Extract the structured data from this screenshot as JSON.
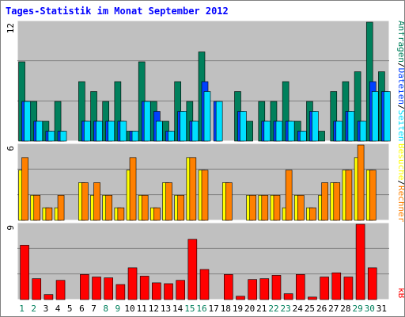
{
  "title": "Tages-Statistik im Monat September 2012",
  "colors": {
    "title": "#0000ff",
    "panel_bg": "#c0c0c0",
    "grid": "#808080",
    "anfragen": "#00805c",
    "dateien": "#0040ff",
    "seiten": "#00e0ff",
    "besuche": "#ffff00",
    "rechner": "#ff8000",
    "kb": "#ff0000",
    "weekend_label": "#00805c",
    "weekday_label": "#000000"
  },
  "chart_data": [
    {
      "type": "bar",
      "panel": "top",
      "ymax_label": "12",
      "ymax": 12,
      "x": [
        1,
        2,
        3,
        4,
        5,
        6,
        7,
        8,
        9,
        10,
        11,
        12,
        13,
        14,
        15,
        16,
        17,
        18,
        19,
        20,
        21,
        22,
        23,
        24,
        25,
        26,
        27,
        28,
        29,
        30,
        31
      ],
      "series": [
        {
          "name": "Anfragen",
          "values": [
            8,
            4,
            2,
            4,
            0,
            6,
            5,
            4,
            6,
            1,
            8,
            4,
            2,
            6,
            4,
            9,
            0,
            0,
            5,
            2,
            4,
            4,
            6,
            2,
            4,
            1,
            5,
            6,
            7,
            12,
            7
          ]
        },
        {
          "name": "Dateien",
          "values": [
            4,
            2,
            1,
            1,
            0,
            2,
            2,
            2,
            2,
            1,
            4,
            3,
            1,
            3,
            2,
            6,
            4,
            0,
            3,
            0,
            2,
            2,
            2,
            1,
            3,
            0,
            2,
            3,
            2,
            6,
            5
          ]
        },
        {
          "name": "Seiten",
          "values": [
            4,
            2,
            1,
            1,
            0,
            2,
            2,
            2,
            2,
            1,
            4,
            2,
            1,
            3,
            2,
            5,
            4,
            0,
            3,
            0,
            2,
            2,
            2,
            1,
            3,
            0,
            2,
            3,
            2,
            5,
            5
          ]
        }
      ],
      "legend": [
        "Anfragen",
        "Dateien",
        "Seiten"
      ]
    },
    {
      "type": "bar",
      "panel": "middle",
      "ymax_label": "6",
      "ymax": 6,
      "x": [
        1,
        2,
        3,
        4,
        5,
        6,
        7,
        8,
        9,
        10,
        11,
        12,
        13,
        14,
        15,
        16,
        17,
        18,
        19,
        20,
        21,
        22,
        23,
        24,
        25,
        26,
        27,
        28,
        29,
        30,
        31
      ],
      "series": [
        {
          "name": "Besuche",
          "values": [
            4,
            2,
            1,
            1,
            0,
            3,
            2,
            2,
            1,
            4,
            2,
            1,
            3,
            2,
            5,
            4,
            0,
            3,
            0,
            2,
            2,
            2,
            1,
            2,
            1,
            2,
            3,
            4,
            5,
            4,
            0
          ]
        },
        {
          "name": "Rechner",
          "values": [
            5,
            2,
            1,
            2,
            0,
            3,
            3,
            2,
            1,
            5,
            2,
            1,
            3,
            2,
            5,
            4,
            0,
            3,
            0,
            2,
            2,
            2,
            4,
            2,
            1,
            3,
            3,
            4,
            6,
            4,
            0
          ]
        }
      ],
      "legend": [
        "Besuche",
        "Rechner"
      ]
    },
    {
      "type": "bar",
      "panel": "bottom",
      "ymax_label": "9",
      "ymax": 9,
      "x": [
        1,
        2,
        3,
        4,
        5,
        6,
        7,
        8,
        9,
        10,
        11,
        12,
        13,
        14,
        15,
        16,
        17,
        18,
        19,
        20,
        21,
        22,
        23,
        24,
        25,
        26,
        27,
        28,
        29,
        30,
        31
      ],
      "series": [
        {
          "name": "kB",
          "values": [
            6.5,
            2.5,
            0.6,
            2.3,
            0,
            3.0,
            2.7,
            2.6,
            1.8,
            3.8,
            2.8,
            2.0,
            1.9,
            2.3,
            7.2,
            3.6,
            0,
            3.0,
            0.4,
            2.4,
            2.5,
            2.9,
            0.7,
            3.0,
            0.3,
            2.7,
            3.2,
            2.7,
            9.0,
            3.8,
            0
          ]
        }
      ],
      "legend": [
        "kB"
      ]
    }
  ],
  "x_axis": {
    "labels": [
      "1",
      "2",
      "3",
      "4",
      "5",
      "6",
      "7",
      "8",
      "9",
      "10",
      "11",
      "12",
      "13",
      "14",
      "15",
      "16",
      "17",
      "18",
      "19",
      "20",
      "21",
      "22",
      "23",
      "24",
      "25",
      "26",
      "27",
      "28",
      "29",
      "30",
      "31"
    ],
    "weekend_days": [
      1,
      2,
      8,
      9,
      15,
      16,
      22,
      23,
      29,
      30
    ]
  },
  "legend_text": {
    "top": [
      "Anfragen",
      "/",
      "Dateien",
      "/",
      "Seiten"
    ],
    "middle": [
      "Besuche",
      "/",
      "Rechner"
    ],
    "bottom": [
      "kB"
    ]
  }
}
